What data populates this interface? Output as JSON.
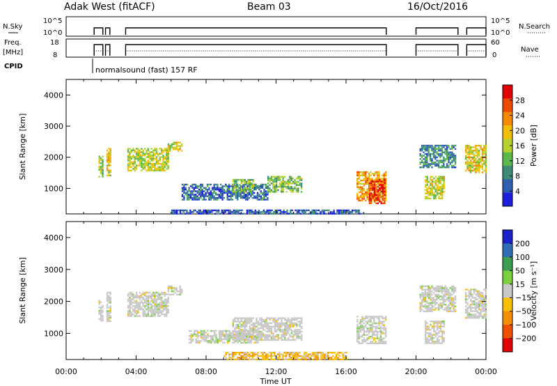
{
  "header": {
    "station": "Adak West (fitACF)",
    "beam": "Beam 03",
    "date": "16/Oct/2016"
  },
  "strip_labels": {
    "nsky": "N.Sky",
    "nsky_ticks": [
      "10^5",
      "10^0"
    ],
    "nsearch": "N.Search",
    "freq": "Freq.",
    "freq_unit": "[MHz]",
    "freq_ticks": [
      "18",
      "8"
    ],
    "nave": "Nave",
    "nave_ticks": [
      "60",
      "0"
    ],
    "cpid": "CPID",
    "cpid_note": "normalsound (fast) 157 RF"
  },
  "colors": {
    "power_scale": [
      "#1e1edc",
      "#2e5fb0",
      "#3c8c78",
      "#5cb84a",
      "#b8d030",
      "#f0c000",
      "#f48a00",
      "#ee4a00",
      "#e00000"
    ],
    "velocity_scale": [
      "#1a22c8",
      "#2f6fb8",
      "#3d9d50",
      "#7ad040",
      "#c8c8c8",
      "#f8c000",
      "#f49000",
      "#ee5000",
      "#e00000"
    ]
  },
  "chart_data": [
    {
      "type": "heatmap",
      "name": "power",
      "xlabel": "Time UT",
      "ylabel": "Slant Range [km]",
      "x_ticks": [
        "00:00",
        "04:00",
        "08:00",
        "12:00",
        "16:00",
        "20:00",
        "00:00"
      ],
      "y_ticks": [
        "1000",
        "2000",
        "3000",
        "4000"
      ],
      "xlim_hours": [
        0,
        24
      ],
      "ylim_km": [
        180,
        4500
      ],
      "colorbar_label": "Power [dB]",
      "colorbar_ticks": [
        "4",
        "8",
        "12",
        "16",
        "20",
        "24",
        "28"
      ],
      "colorbar_range": [
        0,
        30
      ],
      "regions": [
        {
          "t0": 1.85,
          "t1": 2.1,
          "r0": 1400,
          "r1": 2050,
          "v": 14
        },
        {
          "t0": 2.3,
          "t1": 2.5,
          "r0": 1400,
          "r1": 2300,
          "v": 18
        },
        {
          "t0": 3.5,
          "t1": 5.8,
          "r0": 1550,
          "r1": 2300,
          "v": 15
        },
        {
          "t0": 5.8,
          "t1": 6.6,
          "r0": 2200,
          "r1": 2500,
          "v": 17
        },
        {
          "t0": 6.6,
          "t1": 11.5,
          "r0": 650,
          "r1": 1150,
          "v": 6
        },
        {
          "t0": 9.5,
          "t1": 10.7,
          "r0": 900,
          "r1": 1300,
          "v": 13
        },
        {
          "t0": 11.5,
          "t1": 13.5,
          "r0": 900,
          "r1": 1400,
          "v": 12
        },
        {
          "t0": 16.6,
          "t1": 18.3,
          "r0": 600,
          "r1": 1550,
          "v": 19
        },
        {
          "t0": 17.3,
          "t1": 18.2,
          "r0": 500,
          "r1": 1300,
          "v": 26
        },
        {
          "t0": 20.2,
          "t1": 22.3,
          "r0": 1700,
          "r1": 2400,
          "v": 8
        },
        {
          "t0": 20.5,
          "t1": 21.6,
          "r0": 700,
          "r1": 1400,
          "v": 16
        },
        {
          "t0": 22.8,
          "t1": 24,
          "r0": 1500,
          "r1": 2400,
          "v": 17
        },
        {
          "t0": 6,
          "t1": 17,
          "r0": 180,
          "r1": 320,
          "v": 5
        }
      ]
    },
    {
      "type": "heatmap",
      "name": "velocity",
      "xlabel": "Time UT",
      "ylabel": "Slant Range [km]",
      "x_ticks": [
        "00:00",
        "04:00",
        "08:00",
        "12:00",
        "16:00",
        "20:00",
        "00:00"
      ],
      "y_ticks": [
        "1000",
        "2000",
        "3000",
        "4000"
      ],
      "xlim_hours": [
        0,
        24
      ],
      "ylim_km": [
        180,
        4500
      ],
      "colorbar_label": "Velocity [m s⁻¹]",
      "colorbar_ticks": [
        "200",
        "100",
        "50",
        "15",
        "−15",
        "−50",
        "−100",
        "−200"
      ],
      "regions": [
        {
          "t0": 1.85,
          "t1": 2.1,
          "r0": 1400,
          "r1": 2050,
          "v": 0
        },
        {
          "t0": 2.3,
          "t1": 2.5,
          "r0": 1400,
          "r1": 2300,
          "v": 0
        },
        {
          "t0": 3.5,
          "t1": 5.8,
          "r0": 1550,
          "r1": 2300,
          "v": 0
        },
        {
          "t0": 5.8,
          "t1": 6.6,
          "r0": 2200,
          "r1": 2500,
          "v": 0
        },
        {
          "t0": 7,
          "t1": 11,
          "r0": 700,
          "r1": 1100,
          "v": 0
        },
        {
          "t0": 9.5,
          "t1": 13.5,
          "r0": 800,
          "r1": 1500,
          "v": 0
        },
        {
          "t0": 16.6,
          "t1": 18.3,
          "r0": 700,
          "r1": 1550,
          "v": 0
        },
        {
          "t0": 20.2,
          "t1": 22.3,
          "r0": 1700,
          "r1": 2500,
          "v": 0
        },
        {
          "t0": 20.5,
          "t1": 21.6,
          "r0": 700,
          "r1": 1400,
          "v": 0
        },
        {
          "t0": 22.8,
          "t1": 24,
          "r0": 1500,
          "r1": 2400,
          "v": 0
        },
        {
          "t0": 9,
          "t1": 16,
          "r0": 200,
          "r1": 420,
          "v": -40
        }
      ]
    }
  ]
}
